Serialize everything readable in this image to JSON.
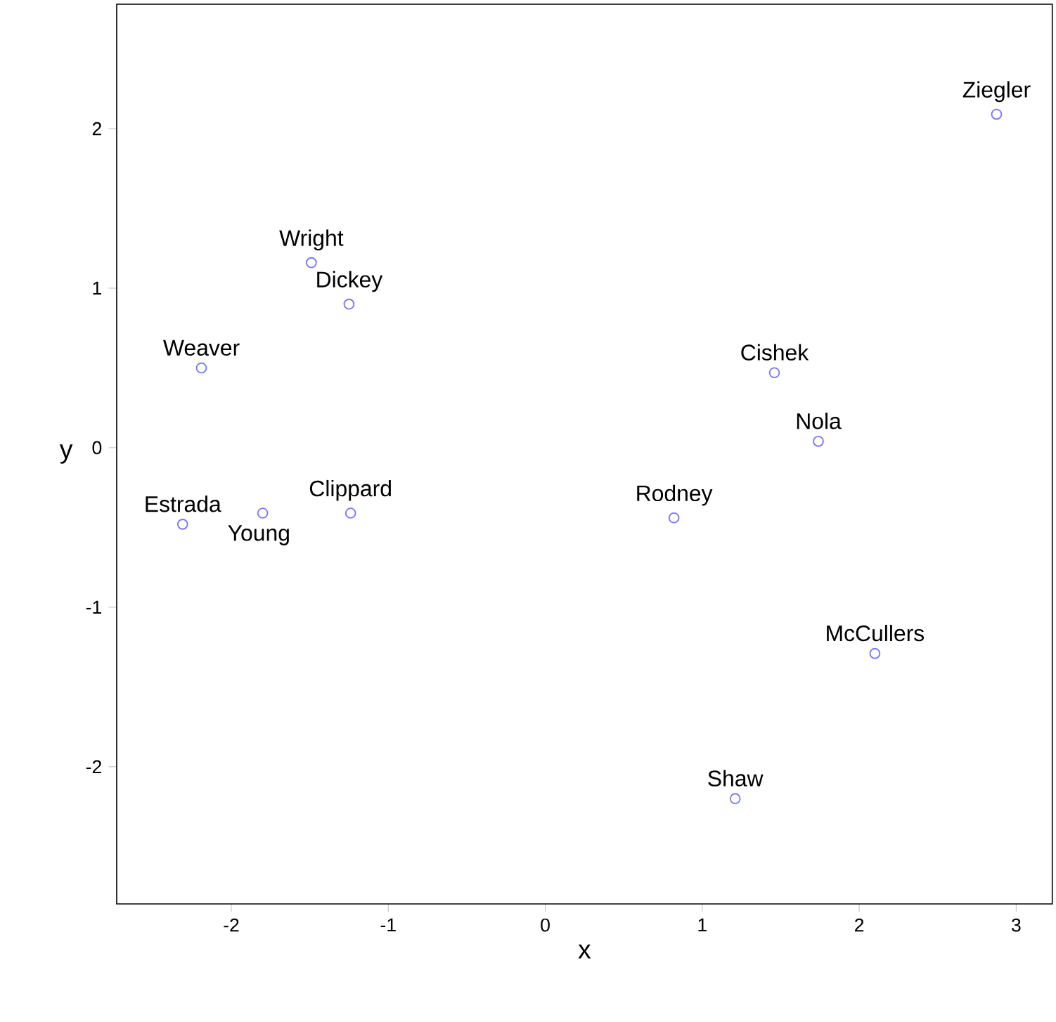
{
  "chart_data": {
    "type": "scatter",
    "xlabel": "x",
    "ylabel": "y",
    "x": [
      2.875,
      -1.49,
      -1.25,
      -2.19,
      1.46,
      1.74,
      -2.31,
      -1.8,
      -1.24,
      0.82,
      2.1,
      1.21
    ],
    "values": [
      2.09,
      1.16,
      0.9,
      0.5,
      0.47,
      0.04,
      -0.48,
      -0.41,
      -0.41,
      -0.44,
      -1.29,
      -2.2
    ],
    "color": "#7777ff",
    "marker": "circle",
    "xlim": [
      -2.73,
      3.23
    ],
    "ylim": [
      -2.86,
      2.78
    ],
    "xticks": [
      -2,
      -1,
      0,
      1,
      2,
      3
    ],
    "yticks": [
      -2,
      -1,
      0,
      1,
      2
    ],
    "annotations": [
      {
        "text": "Ziegler",
        "x": 2.875,
        "y": 2.09
      },
      {
        "text": "Wright",
        "x": -1.49,
        "y": 1.16
      },
      {
        "text": "Dickey",
        "x": -1.25,
        "y": 0.9
      },
      {
        "text": "Weaver",
        "x": -2.19,
        "y": 0.5
      },
      {
        "text": "Cishek",
        "x": 1.46,
        "y": 0.47
      },
      {
        "text": "Nola",
        "x": 1.74,
        "y": 0.04
      },
      {
        "text": "Estrada",
        "x": -2.31,
        "y": -0.48
      },
      {
        "text": "Young",
        "x": -1.8,
        "y": -0.41
      },
      {
        "text": "Clippard",
        "x": -1.24,
        "y": -0.41
      },
      {
        "text": "Rodney",
        "x": 0.82,
        "y": -0.44
      },
      {
        "text": "McCullers",
        "x": 2.1,
        "y": -1.29
      },
      {
        "text": "Shaw",
        "x": 1.21,
        "y": -2.2
      }
    ]
  }
}
